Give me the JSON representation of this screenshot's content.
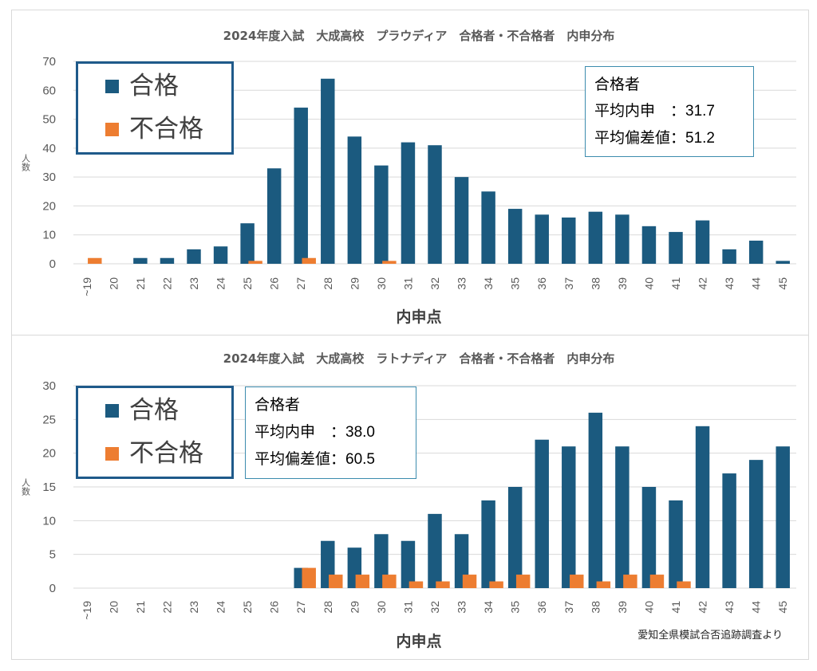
{
  "colors": {
    "pass": "#1b5a7f",
    "fail": "#ed7d31",
    "grid": "#d9d9d9"
  },
  "chart_data": [
    {
      "type": "bar",
      "title": "2024年度入試　大成高校　プラウディア　合格者・不合格者　内申分布",
      "xlabel": "内申点",
      "ylabel": "人数",
      "ylim": [
        0,
        70
      ],
      "yticks": [
        "0",
        "10",
        "20",
        "30",
        "40",
        "50",
        "60",
        "70"
      ],
      "grid": true,
      "legend_position": "top-left",
      "categories": [
        "~19",
        "20",
        "21",
        "22",
        "23",
        "24",
        "25",
        "26",
        "27",
        "28",
        "29",
        "30",
        "31",
        "32",
        "33",
        "34",
        "35",
        "36",
        "37",
        "38",
        "39",
        "40",
        "41",
        "42",
        "43",
        "44",
        "45"
      ],
      "series": [
        {
          "name": "合格",
          "values": [
            0,
            0,
            2,
            2,
            5,
            6,
            14,
            33,
            54,
            64,
            44,
            34,
            42,
            41,
            30,
            25,
            19,
            17,
            16,
            18,
            17,
            13,
            11,
            15,
            5,
            8,
            1
          ]
        },
        {
          "name": "不合格",
          "values": [
            2,
            0,
            0,
            0,
            0,
            0,
            1,
            0,
            2,
            0,
            0,
            1,
            0,
            0,
            0,
            0,
            0,
            0,
            0,
            0,
            0,
            0,
            0,
            0,
            0,
            0,
            0
          ]
        }
      ],
      "stats": {
        "heading": "合格者",
        "avg_label": "平均内申　",
        "avg_value": "：31.7",
        "dev_label": "平均偏差値",
        "dev_value": "：51.2"
      }
    },
    {
      "type": "bar",
      "title": "2024年度入試　大成高校　ラトナディア　合格者・不合格者　内申分布",
      "xlabel": "内申点",
      "ylabel": "人数",
      "ylim": [
        0,
        30
      ],
      "yticks": [
        "0",
        "5",
        "10",
        "15",
        "20",
        "25",
        "30"
      ],
      "grid": true,
      "legend_position": "top-left",
      "categories": [
        "~19",
        "20",
        "21",
        "22",
        "23",
        "24",
        "25",
        "26",
        "27",
        "28",
        "29",
        "30",
        "31",
        "32",
        "33",
        "34",
        "35",
        "36",
        "37",
        "38",
        "39",
        "40",
        "41",
        "42",
        "43",
        "44",
        "45"
      ],
      "series": [
        {
          "name": "合格",
          "values": [
            0,
            0,
            0,
            0,
            0,
            0,
            0,
            0,
            3,
            7,
            6,
            8,
            7,
            11,
            8,
            13,
            15,
            22,
            21,
            26,
            21,
            15,
            13,
            24,
            17,
            19,
            21
          ]
        },
        {
          "name": "不合格",
          "values": [
            0,
            0,
            0,
            0,
            0,
            0,
            0,
            0,
            3,
            2,
            2,
            2,
            1,
            1,
            2,
            1,
            2,
            0,
            2,
            1,
            2,
            2,
            1,
            0,
            0,
            0,
            0
          ]
        }
      ],
      "stats": {
        "heading": "合格者",
        "avg_label": "平均内申　",
        "avg_value": "：38.0",
        "dev_label": "平均偏差値",
        "dev_value": "：60.5"
      }
    }
  ],
  "footer": {
    "source": "愛知全県模試合否追跡調査より"
  }
}
